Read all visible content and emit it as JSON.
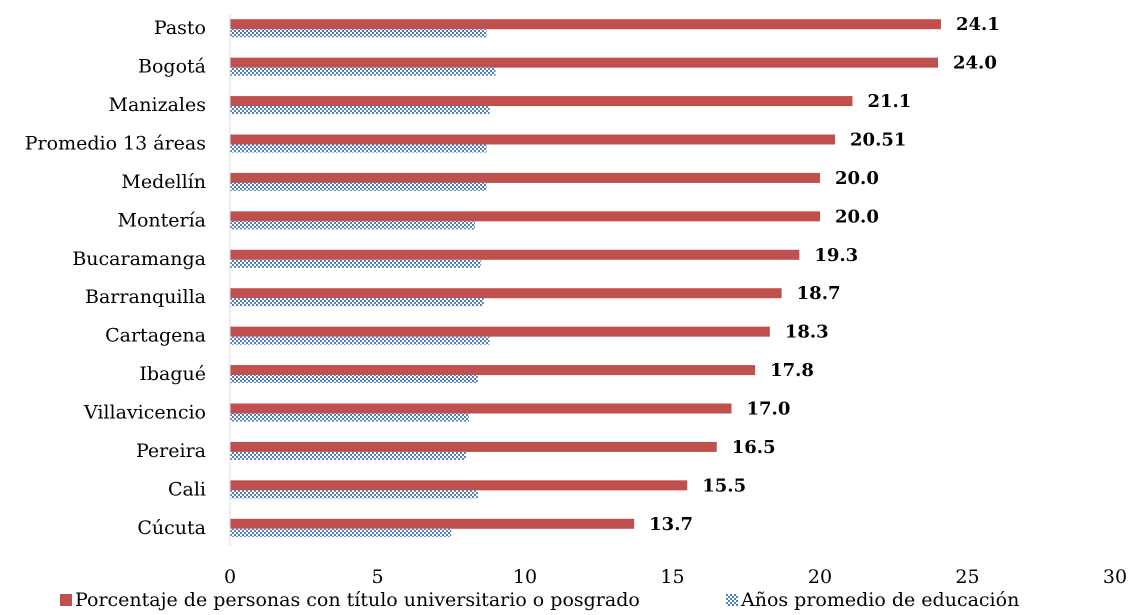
{
  "chart_data": {
    "type": "bar",
    "orientation": "horizontal",
    "categories": [
      "Pasto",
      "Bogotá",
      "Manizales",
      "Promedio 13 áreas",
      "Medellín",
      "Montería",
      "Bucaramanga",
      "Barranquilla",
      "Cartagena",
      "Ibagué",
      "Villavicencio",
      "Pereira",
      "Cali",
      "Cúcuta"
    ],
    "series": [
      {
        "name": "Porcentaje de personas con título universitario o posgrado",
        "color": "#c0504d",
        "pattern": "solid",
        "values": [
          24.1,
          24.0,
          21.1,
          20.51,
          20.0,
          20.0,
          19.3,
          18.7,
          18.3,
          17.8,
          17.0,
          16.5,
          15.5,
          13.7
        ],
        "data_labels": [
          "24.1",
          "24.0",
          "21.1",
          "20.51",
          "20.0",
          "20.0",
          "19.3",
          "18.7",
          "18.3",
          "17.8",
          "17.0",
          "16.5",
          "15.5",
          "13.7"
        ]
      },
      {
        "name": "Años promedio de educación",
        "color": "#4f81bd",
        "pattern": "checkered",
        "values": [
          8.7,
          9.0,
          8.8,
          8.7,
          8.7,
          8.3,
          8.5,
          8.6,
          8.8,
          8.4,
          8.1,
          8.0,
          8.4,
          7.5
        ]
      }
    ],
    "xlim": [
      0,
      30
    ],
    "x_ticks": [
      0,
      5,
      10,
      15,
      20,
      25,
      30
    ],
    "title": "",
    "xlabel": "",
    "ylabel": "",
    "grid": false,
    "legend_position": "bottom"
  }
}
